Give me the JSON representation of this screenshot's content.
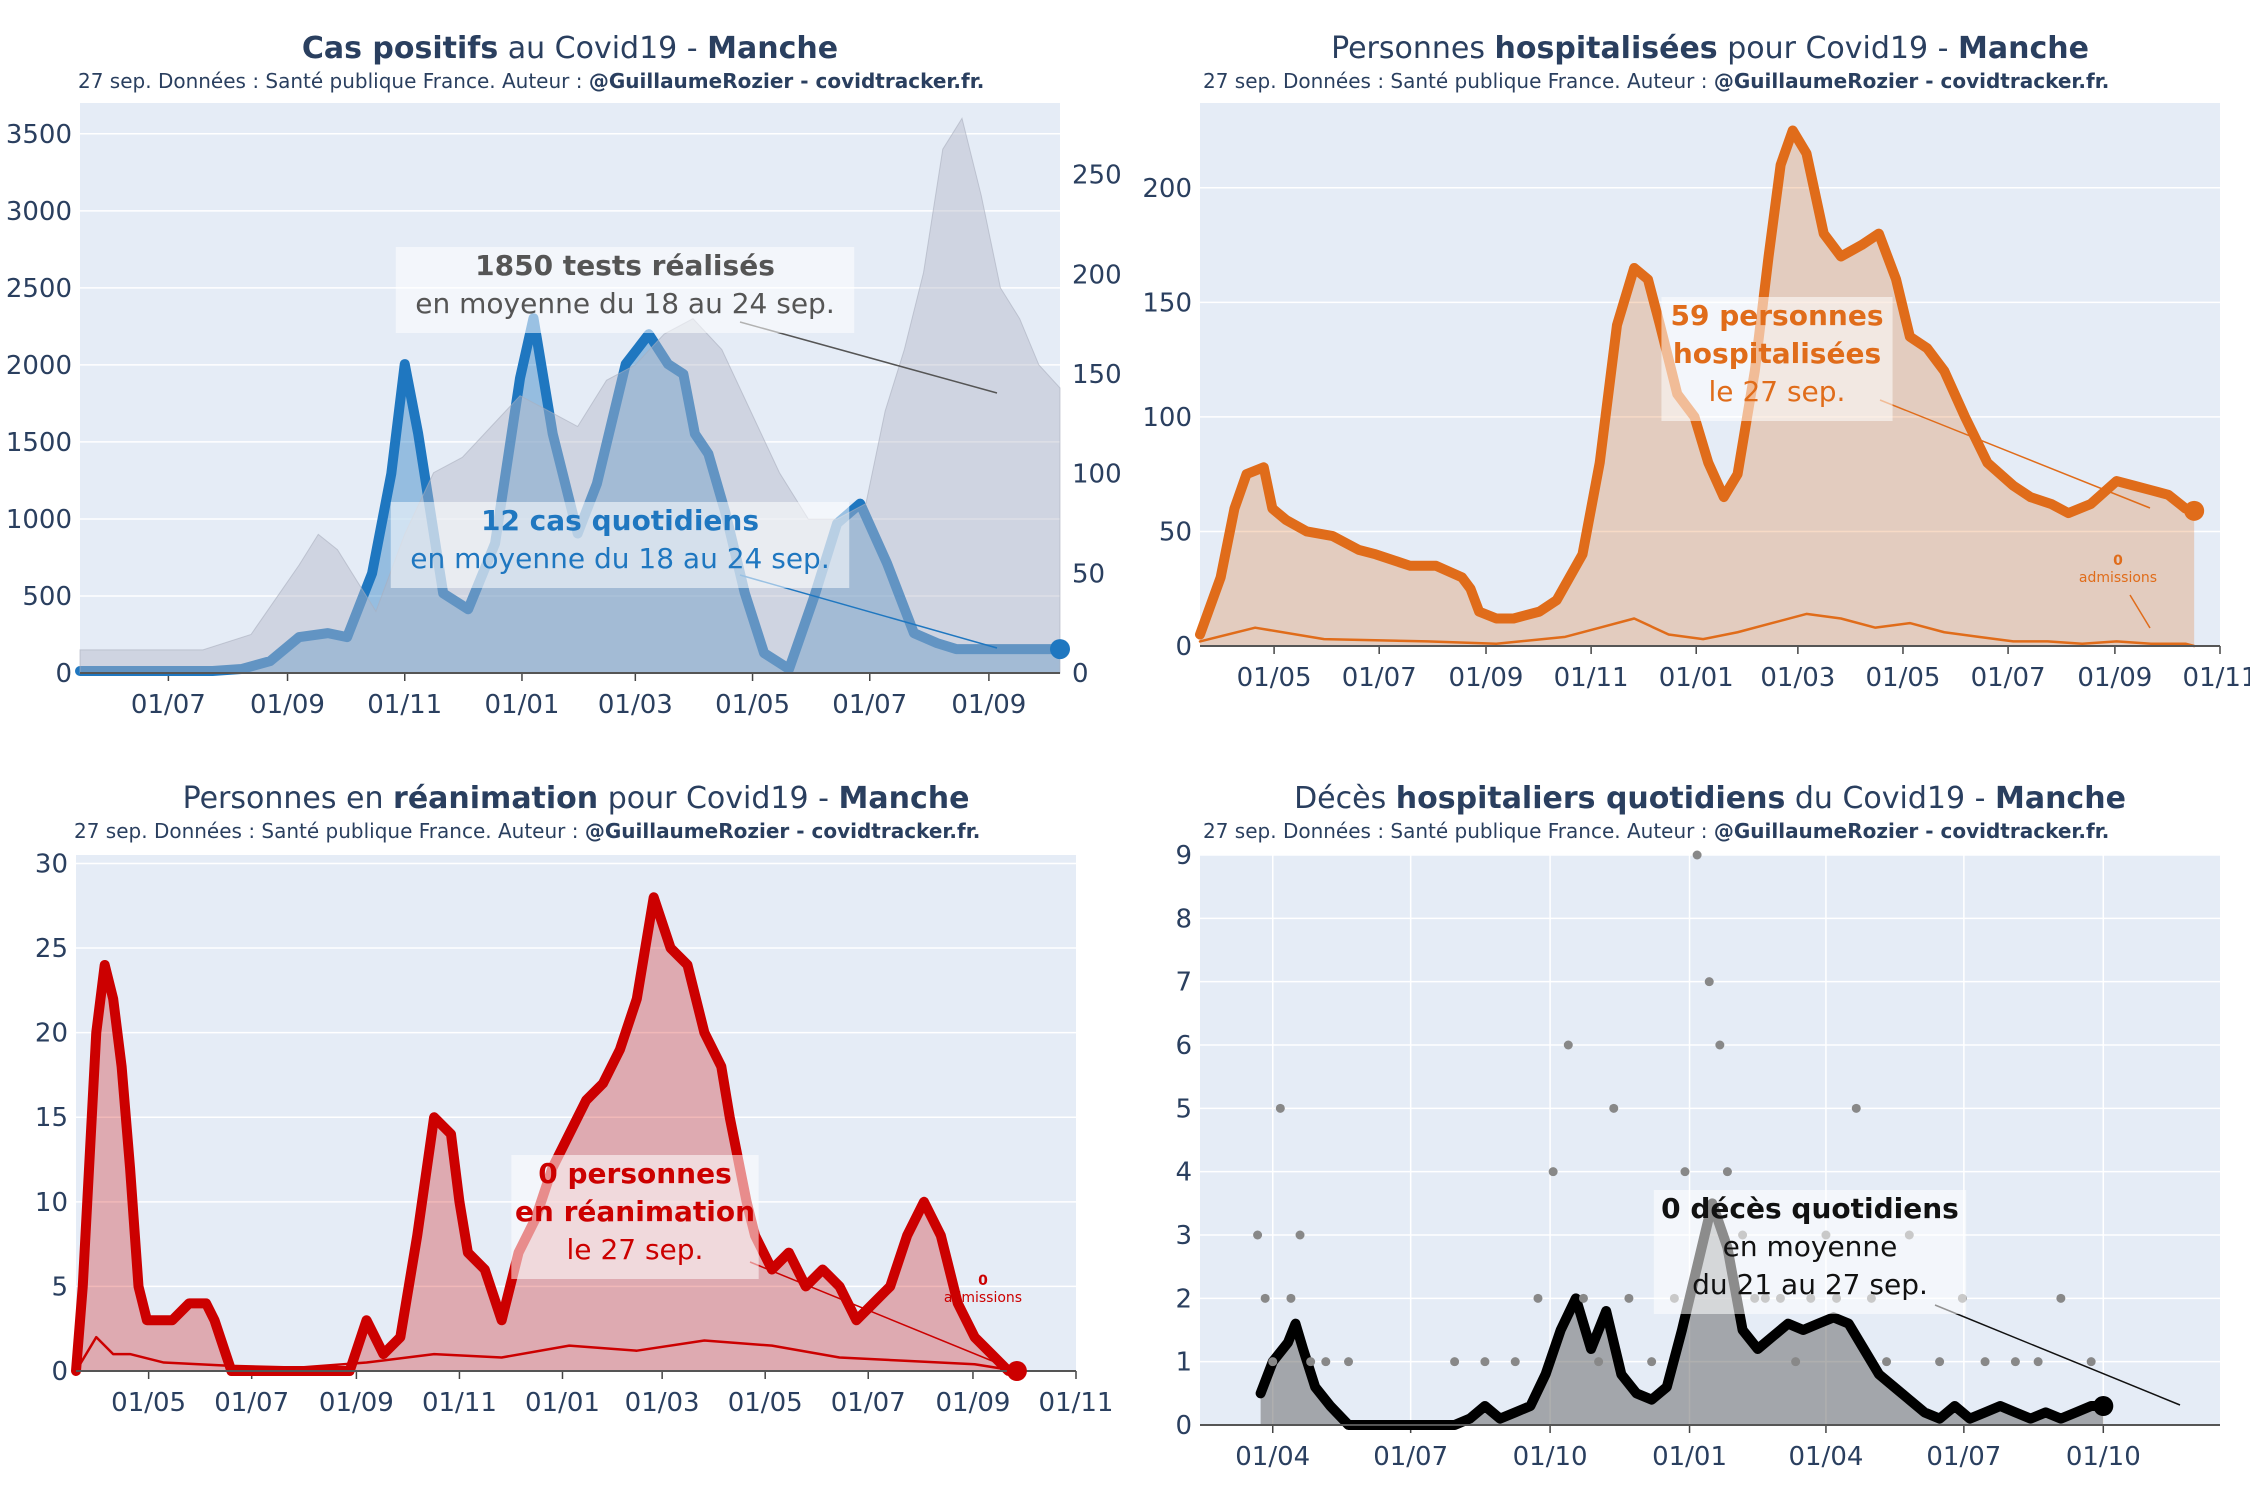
{
  "source_line": "27 sep. Données : Santé publique France. Auteur : ",
  "author": "@GuillaumeRozier - covidtracker.fr.",
  "chart_data": [
    {
      "id": "cases",
      "type": "line",
      "title_parts": [
        [
          "Cas positifs",
          true
        ],
        [
          " au Covid19 - ",
          false
        ],
        [
          "Manche",
          true
        ]
      ],
      "color": "#1f77c0",
      "fill": "rgba(31,119,192,0.40)",
      "bars_color": "rgba(180,185,200,0.45)",
      "x_tick_labels": [
        "01/07",
        "01/09",
        "01/11",
        "01/01",
        "01/03",
        "01/05",
        "01/07",
        "01/09"
      ],
      "x_tick_days": [
        122,
        184,
        245,
        306,
        365,
        426,
        487,
        549
      ],
      "x_range_days": [
        76,
        586
      ],
      "ylim": [
        0,
        3700
      ],
      "y_ticks": [
        0,
        500,
        1000,
        1500,
        2000,
        2500,
        3000,
        3500
      ],
      "y2lim": [
        0,
        286
      ],
      "y2_ticks": [
        0,
        50,
        100,
        150,
        200,
        250
      ],
      "series": [
        {
          "kind": "line",
          "axis": "y2",
          "x": [
            76,
            110,
            130,
            145,
            160,
            175,
            190,
            205,
            215,
            228,
            238,
            245,
            252,
            265,
            278,
            292,
            305,
            312,
            322,
            335,
            345,
            360,
            372,
            382,
            390,
            396,
            403,
            412,
            422,
            432,
            445,
            458,
            470,
            482,
            496,
            510,
            522,
            532,
            542,
            552,
            562,
            572,
            582,
            586
          ],
          "y": [
            1,
            1,
            1,
            1,
            2,
            6,
            18,
            20,
            18,
            50,
            100,
            155,
            120,
            40,
            32,
            65,
            148,
            178,
            120,
            70,
            95,
            155,
            170,
            155,
            150,
            120,
            110,
            80,
            40,
            10,
            2,
            38,
            75,
            85,
            55,
            20,
            15,
            12,
            12,
            12,
            12,
            12,
            12,
            12
          ]
        },
        {
          "kind": "bars",
          "axis": "y",
          "x": [
            76,
            110,
            140,
            165,
            190,
            200,
            210,
            230,
            245,
            260,
            275,
            290,
            305,
            320,
            335,
            350,
            365,
            380,
            395,
            410,
            425,
            440,
            455,
            470,
            485,
            495,
            505,
            515,
            525,
            535,
            545,
            555,
            565,
            575,
            586
          ],
          "y": [
            150,
            150,
            150,
            250,
            700,
            900,
            800,
            400,
            900,
            1300,
            1400,
            1600,
            1800,
            1700,
            1600,
            1900,
            2000,
            2200,
            2300,
            2100,
            1700,
            1300,
            1000,
            1000,
            1100,
            1700,
            2100,
            2600,
            3400,
            3600,
            3100,
            2500,
            2300,
            2000,
            1850
          ]
        }
      ],
      "annotations": [
        {
          "lines": [
            [
              "1850 tests réalisés",
              true
            ],
            [
              "en moyenne du 18 au 24 sep.",
              false
            ]
          ],
          "color": "#555555"
        },
        {
          "lines": [
            [
              "12 cas quotidiens",
              true
            ],
            [
              "en moyenne du 18 au 24 sep.",
              false
            ]
          ],
          "color": "#1f77c0"
        }
      ],
      "endpoint": {
        "x": 586,
        "y": 12
      }
    },
    {
      "id": "hosp",
      "type": "area",
      "title_parts": [
        [
          "Personnes ",
          false
        ],
        [
          "hospitalisées",
          true
        ],
        [
          " pour Covid19 - ",
          false
        ],
        [
          "Manche",
          true
        ]
      ],
      "color": "#e06c1a",
      "fill": "rgba(224,108,26,0.25)",
      "x_tick_labels": [
        "01/05",
        "01/07",
        "01/09",
        "01/11",
        "01/01",
        "01/03",
        "01/05",
        "01/07",
        "01/09",
        "01/11"
      ],
      "x_tick_days": [
        31,
        92,
        154,
        215,
        276,
        335,
        396,
        457,
        519,
        580
      ],
      "x_range_days": [
        -12,
        580
      ],
      "ylim": [
        0,
        237
      ],
      "y_ticks": [
        0,
        50,
        100,
        150,
        200
      ],
      "series": [
        {
          "kind": "line",
          "x": [
            -12,
            0,
            8,
            15,
            25,
            30,
            38,
            50,
            65,
            80,
            90,
            110,
            125,
            140,
            145,
            150,
            160,
            170,
            185,
            195,
            210,
            220,
            230,
            240,
            248,
            255,
            265,
            275,
            283,
            292,
            300,
            310,
            318,
            325,
            332,
            340,
            350,
            360,
            372,
            382,
            392,
            400,
            410,
            420,
            432,
            445,
            460,
            470,
            482,
            492,
            505,
            520,
            530,
            540,
            550,
            560,
            565
          ],
          "y": [
            5,
            30,
            60,
            75,
            78,
            60,
            55,
            50,
            48,
            42,
            40,
            35,
            35,
            30,
            25,
            15,
            12,
            12,
            15,
            20,
            40,
            80,
            140,
            165,
            160,
            140,
            110,
            100,
            80,
            65,
            75,
            120,
            170,
            210,
            225,
            215,
            180,
            170,
            175,
            180,
            160,
            135,
            130,
            120,
            100,
            80,
            70,
            65,
            62,
            58,
            62,
            72,
            70,
            68,
            66,
            60,
            59
          ]
        },
        {
          "kind": "line",
          "x": [
            -12,
            20,
            60,
            120,
            160,
            200,
            220,
            240,
            260,
            280,
            300,
            320,
            340,
            360,
            380,
            400,
            420,
            440,
            460,
            480,
            500,
            520,
            540,
            560,
            565
          ],
          "y": [
            2,
            8,
            3,
            2,
            1,
            4,
            8,
            12,
            5,
            3,
            6,
            10,
            14,
            12,
            8,
            10,
            6,
            4,
            2,
            2,
            1,
            2,
            1,
            1,
            0
          ],
          "thin": true
        }
      ],
      "annotations": [
        {
          "lines": [
            [
              "59 personnes",
              true
            ],
            [
              "hospitalisées",
              true
            ],
            [
              "le 27 sep.",
              false
            ]
          ],
          "color": "#e06c1a"
        },
        {
          "lines": [
            [
              "0",
              true
            ],
            [
              "admissions",
              false
            ]
          ],
          "color": "#e06c1a",
          "small": true
        }
      ],
      "endpoint": {
        "x": 565,
        "y": 59
      }
    },
    {
      "id": "rea",
      "type": "area",
      "title_parts": [
        [
          "Personnes en ",
          false
        ],
        [
          "réanimation",
          true
        ],
        [
          " pour Covid19 - ",
          false
        ],
        [
          "Manche",
          true
        ]
      ],
      "color": "#cc0000",
      "fill": "rgba(204,0,0,0.28)",
      "x_tick_labels": [
        "01/05",
        "01/07",
        "01/09",
        "01/11",
        "01/01",
        "01/03",
        "01/05",
        "01/07",
        "01/09",
        "01/11"
      ],
      "x_tick_days": [
        31,
        92,
        154,
        215,
        276,
        335,
        396,
        457,
        519,
        580
      ],
      "x_range_days": [
        -12,
        580
      ],
      "ylim": [
        0,
        30.5
      ],
      "y_ticks": [
        0,
        5,
        10,
        15,
        20,
        25,
        30
      ],
      "series": [
        {
          "kind": "line",
          "x": [
            -12,
            -8,
            0,
            5,
            10,
            15,
            20,
            25,
            30,
            38,
            45,
            55,
            65,
            70,
            80,
            90,
            95,
            120,
            150,
            160,
            170,
            180,
            190,
            200,
            210,
            215,
            220,
            230,
            240,
            250,
            260,
            270,
            280,
            290,
            300,
            310,
            320,
            330,
            340,
            350,
            360,
            370,
            375,
            385,
            390,
            400,
            410,
            420,
            430,
            440,
            450,
            460,
            470,
            480,
            490,
            500,
            505,
            510,
            520,
            530,
            540,
            545
          ],
          "y": [
            0,
            5,
            20,
            24,
            22,
            18,
            12,
            5,
            3,
            3,
            3,
            4,
            4,
            3,
            0,
            0,
            0,
            0,
            0,
            3,
            1,
            2,
            8,
            15,
            14,
            10,
            7,
            6,
            3,
            7,
            9,
            12,
            14,
            16,
            17,
            19,
            22,
            28,
            25,
            24,
            20,
            18,
            15,
            10,
            8,
            6,
            7,
            5,
            6,
            5,
            3,
            4,
            5,
            8,
            10,
            8,
            6,
            4,
            2,
            1,
            0,
            0
          ]
        },
        {
          "kind": "line",
          "x": [
            -12,
            0,
            10,
            20,
            40,
            80,
            120,
            160,
            200,
            240,
            280,
            320,
            360,
            400,
            440,
            480,
            520,
            545
          ],
          "y": [
            0,
            2,
            1,
            1,
            0.5,
            0.3,
            0.2,
            0.5,
            1,
            0.8,
            1.5,
            1.2,
            1.8,
            1.5,
            0.8,
            0.6,
            0.4,
            0
          ],
          "thin": true
        }
      ],
      "annotations": [
        {
          "lines": [
            [
              "0 personnes",
              true
            ],
            [
              "en réanimation",
              true
            ],
            [
              "le 27 sep.",
              false
            ]
          ],
          "color": "#cc0000"
        },
        {
          "lines": [
            [
              "0",
              true
            ],
            [
              "admissions",
              false
            ]
          ],
          "color": "#cc0000",
          "small": true
        }
      ],
      "endpoint": {
        "x": 545,
        "y": 0
      }
    },
    {
      "id": "deces",
      "type": "scatter",
      "title_parts": [
        [
          "Décès ",
          false
        ],
        [
          "hospitaliers quotidiens",
          true
        ],
        [
          " du Covid19 - ",
          false
        ],
        [
          "Manche",
          true
        ]
      ],
      "color": "#000000",
      "fill": "rgba(110,110,110,0.55)",
      "x_tick_labels": [
        "01/04",
        "01/07",
        "01/10",
        "01/01",
        "01/04",
        "01/07",
        "01/10"
      ],
      "x_tick_days": [
        0,
        91,
        183,
        275,
        365,
        456,
        548
      ],
      "x_range_days": [
        -48,
        625
      ],
      "ylim": [
        0,
        9
      ],
      "y_ticks": [
        0,
        1,
        2,
        3,
        4,
        5,
        6,
        7,
        8,
        9
      ],
      "series": [
        {
          "kind": "line",
          "x": [
            -8,
            0,
            10,
            15,
            20,
            28,
            38,
            50,
            60,
            120,
            130,
            140,
            150,
            160,
            170,
            180,
            190,
            200,
            210,
            220,
            230,
            240,
            250,
            260,
            270,
            280,
            290,
            300,
            310,
            320,
            330,
            340,
            350,
            360,
            370,
            380,
            390,
            400,
            410,
            420,
            430,
            440,
            450,
            460,
            470,
            480,
            490,
            500,
            510,
            520,
            530,
            540,
            548
          ],
          "y": [
            0.5,
            1,
            1.3,
            1.6,
            1.2,
            0.6,
            0.3,
            0,
            0,
            0,
            0.1,
            0.3,
            0.1,
            0.2,
            0.3,
            0.8,
            1.5,
            2,
            1.2,
            1.8,
            0.8,
            0.5,
            0.4,
            0.6,
            1.5,
            2.5,
            3.5,
            2.8,
            1.5,
            1.2,
            1.4,
            1.6,
            1.5,
            1.6,
            1.7,
            1.6,
            1.2,
            0.8,
            0.6,
            0.4,
            0.2,
            0.1,
            0.3,
            0.1,
            0.2,
            0.3,
            0.2,
            0.1,
            0.2,
            0.1,
            0.2,
            0.3,
            0.3
          ]
        },
        {
          "kind": "points",
          "x": [
            -10,
            -5,
            0,
            5,
            12,
            18,
            25,
            35,
            50,
            120,
            140,
            160,
            175,
            185,
            195,
            205,
            215,
            225,
            235,
            250,
            265,
            272,
            280,
            288,
            295,
            300,
            310,
            318,
            325,
            335,
            345,
            355,
            365,
            372,
            385,
            395,
            405,
            420,
            440,
            455,
            470,
            490,
            505,
            520,
            540
          ],
          "y": [
            3,
            2,
            1,
            5,
            2,
            3,
            1,
            1,
            1,
            1,
            1,
            1,
            2,
            4,
            6,
            2,
            1,
            5,
            2,
            1,
            2,
            4,
            9,
            7,
            6,
            4,
            3,
            2,
            2,
            2,
            1,
            2,
            3,
            2,
            5,
            2,
            1,
            3,
            1,
            2,
            1,
            1,
            1,
            2,
            1
          ]
        }
      ],
      "annotations": [
        {
          "lines": [
            [
              "0 décès quotidiens",
              true
            ],
            [
              "en moyenne",
              false
            ],
            [
              "du 21 au 27 sep.",
              false
            ]
          ],
          "color": "#111111"
        }
      ],
      "endpoint": {
        "x": 548,
        "y": 0.3
      }
    }
  ]
}
